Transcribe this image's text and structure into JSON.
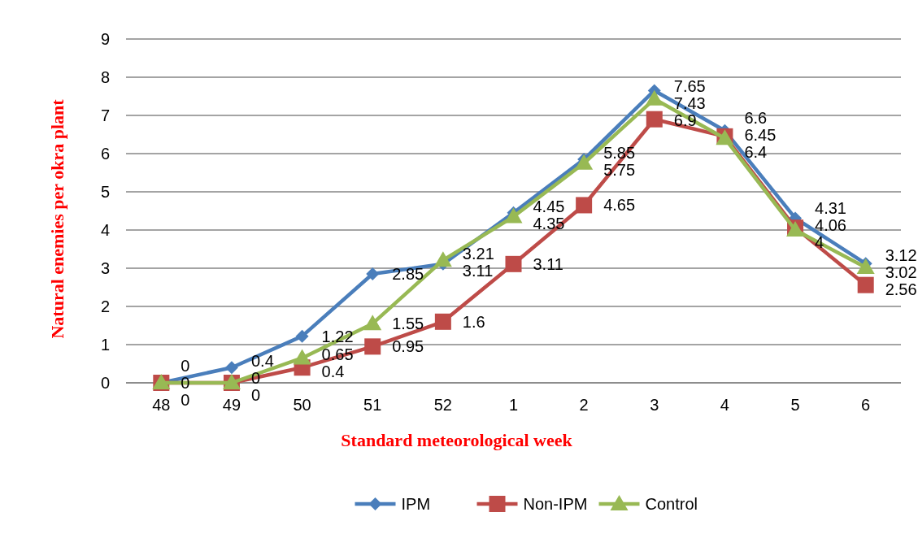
{
  "chart_data": {
    "type": "line",
    "xlabel": "Standard  meteorological week",
    "ylabel": "Natural enemies per okra plant",
    "categories": [
      "48",
      "49",
      "50",
      "51",
      "52",
      "1",
      "2",
      "3",
      "4",
      "5",
      "6"
    ],
    "series": [
      {
        "name": "IPM",
        "color": "#4a7ebb",
        "marker": "diamond",
        "values": [
          0,
          0.4,
          1.22,
          2.85,
          3.11,
          4.45,
          5.85,
          7.65,
          6.6,
          4.31,
          3.12
        ]
      },
      {
        "name": "Non-IPM",
        "color": "#be4b48",
        "marker": "square",
        "values": [
          0,
          0,
          0.4,
          0.95,
          1.6,
          3.11,
          4.65,
          6.9,
          6.45,
          4.06,
          2.56
        ]
      },
      {
        "name": "Control",
        "color": "#98b954",
        "marker": "triangle",
        "values": [
          0,
          0,
          0.65,
          1.55,
          3.21,
          4.35,
          5.75,
          7.43,
          6.4,
          4.0,
          3.02
        ]
      }
    ],
    "ylim": [
      0,
      9
    ],
    "yticks": [
      0,
      1,
      2,
      3,
      4,
      5,
      6,
      7,
      8,
      9
    ],
    "grid": "y",
    "legend": "bottom",
    "data_labels": true
  }
}
